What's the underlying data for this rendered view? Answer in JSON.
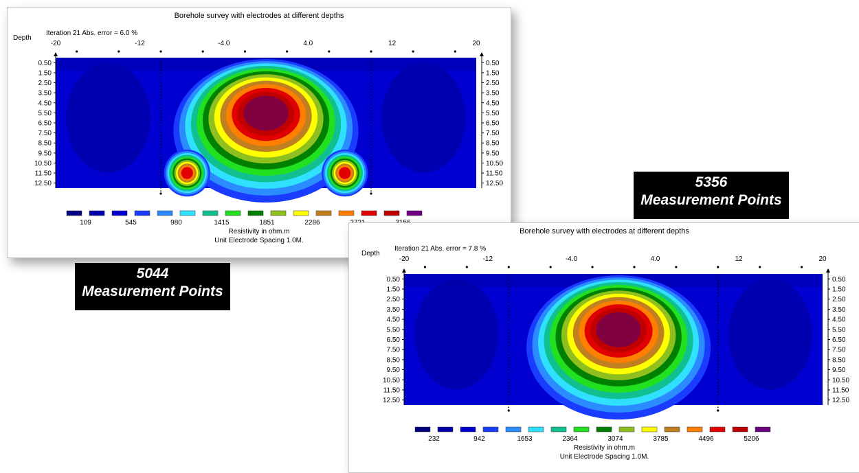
{
  "labels": [
    {
      "count": "5044",
      "text": "Measurement Points"
    },
    {
      "count": "5356",
      "text": "Measurement Points"
    }
  ],
  "chart_data": [
    {
      "type": "heatmap",
      "title": "Borehole survey with electrodes at different depths",
      "iteration": "Iteration 21 Abs. error = 6.0 %",
      "ylabel": "Depth",
      "x_ticks": [
        "-20",
        "-12",
        "-4.0",
        "4.0",
        "12",
        "20"
      ],
      "x_range": [
        -20,
        20
      ],
      "depth_ticks": [
        "0.50",
        "1.50",
        "2.50",
        "3.50",
        "4.50",
        "5.50",
        "6.50",
        "7.50",
        "8.50",
        "9.50",
        "10.50",
        "11.50",
        "12.50"
      ],
      "legend_values": [
        "109",
        "545",
        "980",
        "1415",
        "1851",
        "2286",
        "2721",
        "3156"
      ],
      "legend_colors": [
        "#000080",
        "#0000a8",
        "#0000d0",
        "#1a3cff",
        "#2a8cff",
        "#30e0ff",
        "#10c090",
        "#20e020",
        "#008000",
        "#90c020",
        "#ffff00",
        "#c08020",
        "#ff8000",
        "#e00000",
        "#c00000",
        "#800040",
        "#6a0080"
      ],
      "xlabel": "Resistivity in ohm.m",
      "footer": "Unit Electrode Spacing 1.0M.",
      "borehole_x": [
        -10,
        10
      ],
      "anomalies": [
        {
          "x": 0,
          "depth": 5.5,
          "level": 15
        },
        {
          "x": -7.5,
          "depth": 11.5,
          "level": 13
        },
        {
          "x": 7.5,
          "depth": 11.5,
          "level": 13
        }
      ]
    },
    {
      "type": "heatmap",
      "title": "Borehole survey with electrodes at different depths",
      "iteration": "Iteration 21 Abs. error = 7.8 %",
      "ylabel": "Depth",
      "x_ticks": [
        "-20",
        "-12",
        "-4.0",
        "4.0",
        "12",
        "20"
      ],
      "x_range": [
        -20,
        20
      ],
      "depth_ticks": [
        "0.50",
        "1.50",
        "2.50",
        "3.50",
        "4.50",
        "5.50",
        "6.50",
        "7.50",
        "8.50",
        "9.50",
        "10.50",
        "11.50",
        "12.50"
      ],
      "legend_values": [
        "232",
        "942",
        "1653",
        "2364",
        "3074",
        "3785",
        "4496",
        "5206"
      ],
      "legend_colors": [
        "#000080",
        "#0000a8",
        "#0000d0",
        "#1a3cff",
        "#2a8cff",
        "#30e0ff",
        "#10c090",
        "#20e020",
        "#008000",
        "#90c020",
        "#ffff00",
        "#c08020",
        "#ff8000",
        "#e00000",
        "#c00000",
        "#800040",
        "#6a0080"
      ],
      "xlabel": "Resistivity in ohm.m",
      "footer": "Unit Electrode Spacing 1.0M.",
      "borehole_x": [
        -10,
        10
      ],
      "anomalies": [
        {
          "x": 0.5,
          "depth": 5.5,
          "level": 15
        }
      ]
    }
  ]
}
